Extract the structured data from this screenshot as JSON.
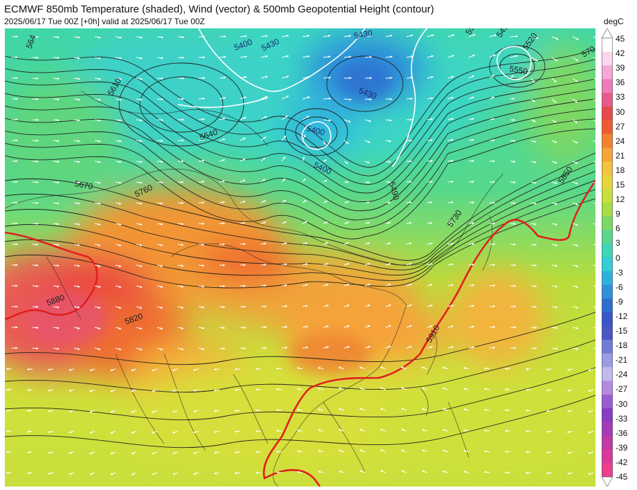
{
  "header": {
    "title": "ECMWF 850mb Temperature (shaded), Wind (vector) & 500mb Geopotential Height (contour)",
    "subtitle": "2025/06/17 Tue 00Z [+0h] valid at 2025/06/17 Tue 00Z"
  },
  "colorbar": {
    "unit": "degC",
    "ticks": [
      "45",
      "42",
      "39",
      "36",
      "33",
      "30",
      "27",
      "24",
      "21",
      "18",
      "15",
      "12",
      "9",
      "6",
      "3",
      "0",
      "-3",
      "-6",
      "-9",
      "-12",
      "-15",
      "-18",
      "-21",
      "-24",
      "-27",
      "-30",
      "-33",
      "-36",
      "-39",
      "-42",
      "-45"
    ],
    "colors": [
      "#ffffff",
      "#fbd6ec",
      "#f5a8d6",
      "#ee7cb9",
      "#e85a8c",
      "#e64a4a",
      "#ef5a2e",
      "#f4802e",
      "#f6a33a",
      "#f3c23f",
      "#e6d63a",
      "#c9df3d",
      "#a6dd45",
      "#7cd865",
      "#5ad68d",
      "#3fd6b4",
      "#33cfd6",
      "#2fb1de",
      "#2f8fd9",
      "#2f6ed1",
      "#3856c7",
      "#4a55c6",
      "#6f7bd6",
      "#9a9de3",
      "#c2b9ee",
      "#b58be0",
      "#9a5cd2",
      "#8a3cc4",
      "#a43bb8",
      "#c13aa6",
      "#da3a98",
      "#ee3f8e"
    ]
  },
  "map": {
    "contour_labels": [
      {
        "text": "5430"
      },
      {
        "text": "5400"
      },
      {
        "text": "5430"
      },
      {
        "text": "5400"
      },
      {
        "text": "5430"
      },
      {
        "text": "5400"
      },
      {
        "text": "5610"
      },
      {
        "text": "5640"
      },
      {
        "text": "5670"
      },
      {
        "text": "5760"
      },
      {
        "text": "5490"
      },
      {
        "text": "5730"
      },
      {
        "text": "5850"
      },
      {
        "text": "5820"
      },
      {
        "text": "5880"
      },
      {
        "text": "5910"
      },
      {
        "text": "5550"
      },
      {
        "text": "5520"
      },
      {
        "text": "5490"
      },
      {
        "text": "55"
      },
      {
        "text": "570"
      },
      {
        "text": "564"
      }
    ]
  }
}
